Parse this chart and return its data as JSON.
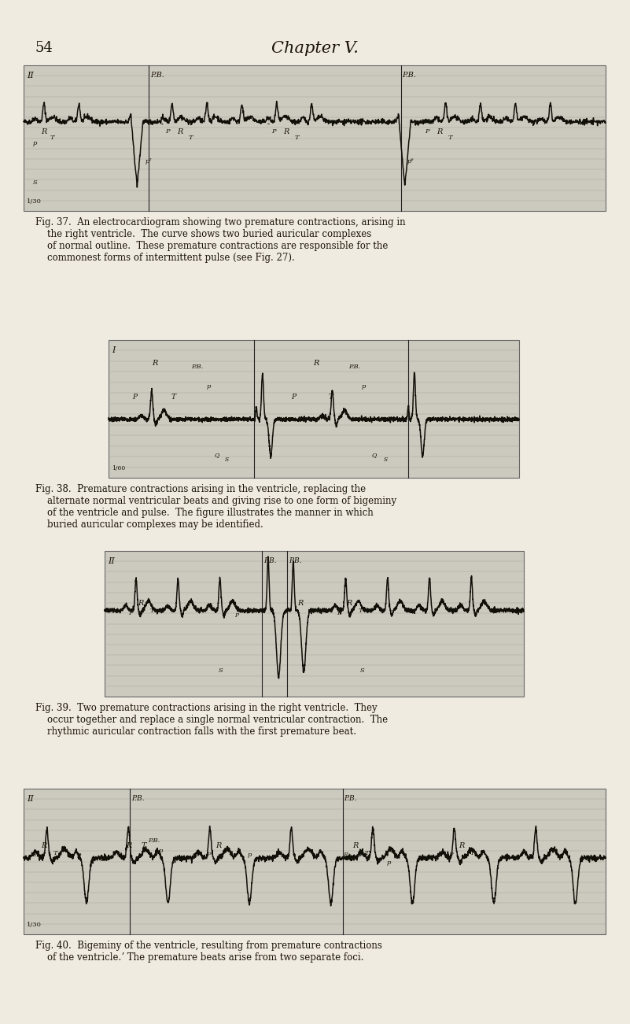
{
  "page_bg": "#f0ebe0",
  "page_number": "54",
  "chapter_title": "Chapter V.",
  "fig37_caption": "Fig. 37.  An electrocardiogram showing two premature contractions, arising in\n    the right ventricle.  The curve shows two buried auricular complexes\n    of normal outline.  These premature contractions are responsible for the\n    commonest forms of intermittent pulse (see Fig. 27).",
  "fig38_caption": "Fig. 38.  Premature contractions arising in the ventricle, replacing the\n    alternate normal ventricular beats and giving rise to one form of bigeminy\n    of the ventricle and pulse.  The figure illustrates the manner in which\n    buried auricular complexes may be identified.",
  "fig39_caption": "Fig. 39.  Two premature contractions arising in the right ventricle.  They\n    occur together and replace a single normal ventricular contraction.  The\n    rhythmic auricular contraction falls with the first premature beat.",
  "fig40_caption": "Fig. 40.  Bigeminy of the ventricle, resulting from premature contractions\n    of the ventricle.ʼ The premature beats arise from two separate foci.",
  "ecg_bg": "#ccc9bf",
  "ecg_line_color": "#111008",
  "grid_color": "#aaa89e",
  "text_color": "#1a1208"
}
